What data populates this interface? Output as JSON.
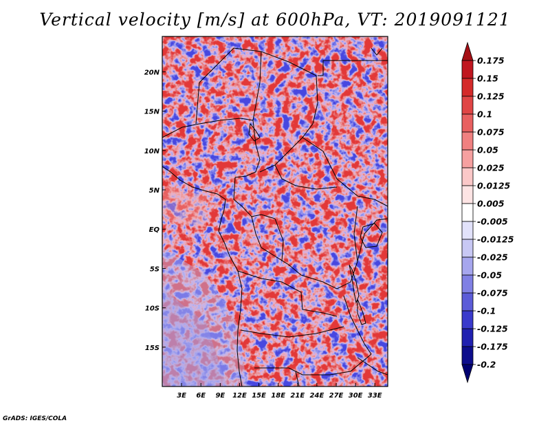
{
  "title": "Vertical velocity [m/s] at 600hPa, VT: 2019091121",
  "footer": "GrADS: IGES/COLA",
  "map": {
    "lat_labels": [
      "20N",
      "15N",
      "10N",
      "5N",
      "EQ",
      "5S",
      "10S",
      "15S"
    ],
    "lat_values": [
      20,
      15,
      10,
      5,
      0,
      -5,
      -10,
      -15
    ],
    "lon_labels": [
      "3E",
      "6E",
      "9E",
      "12E",
      "15E",
      "18E",
      "21E",
      "24E",
      "27E",
      "30E",
      "33E"
    ],
    "lon_values": [
      3,
      6,
      9,
      12,
      15,
      18,
      21,
      24,
      27,
      30,
      33
    ],
    "lon_range": [
      0,
      35
    ],
    "lat_range": [
      -20,
      24.5
    ]
  },
  "colorbar": {
    "labels": [
      "0.175",
      "0.15",
      "0.125",
      "0.1",
      "0.075",
      "0.05",
      "0.025",
      "0.0125",
      "0.005",
      "-0.005",
      "-0.0125",
      "-0.025",
      "-0.05",
      "-0.075",
      "-0.1",
      "-0.125",
      "-0.175",
      "-0.2"
    ],
    "colors": [
      "#a50f15",
      "#c0161f",
      "#d42a2a",
      "#e04545",
      "#e86060",
      "#f08080",
      "#f6a0a0",
      "#fbc8c8",
      "#fde4e4",
      "#ffffff",
      "#e2e2fa",
      "#c8c8f4",
      "#a6a6ee",
      "#8080e4",
      "#5c5cd8",
      "#3a3acc",
      "#2020b0",
      "#0d0d8c",
      "#000070"
    ]
  }
}
